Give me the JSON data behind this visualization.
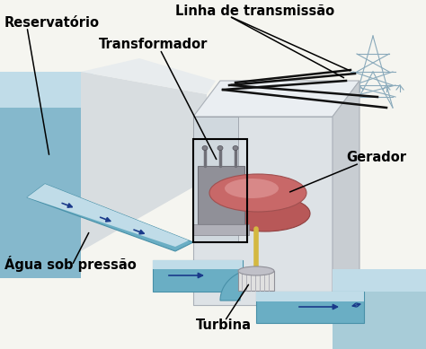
{
  "bg_color": "#f5f5f0",
  "water_blue": "#85b8cc",
  "water_light": "#a8ccd8",
  "water_highlight": "#c0dce8",
  "dam_face": "#d8dde0",
  "dam_top": "#e8ecee",
  "dam_shadow": "#c0c8cc",
  "building_front": "#dde2e6",
  "building_top": "#eaeef2",
  "building_right": "#c8cdd2",
  "building_inner": "#d0d8de",
  "slope_fill": "#d0d5d8",
  "pipe_blue": "#6aaec4",
  "pipe_dark": "#4890a8",
  "generator_red": "#c86868",
  "generator_dark": "#b85858",
  "turbine_white": "#e0e0e0",
  "turbine_gray": "#c0c0c8",
  "shaft_gold": "#d4b840",
  "transformer_gray": "#909098",
  "transformer_dark": "#707078",
  "tower_blue": "#8aaabb",
  "line_black": "#101010",
  "arrow_blue": "#1a3a8a",
  "text_black": "#000000",
  "labels": {
    "reservatorio": "Reservatório",
    "transformador": "Transformador",
    "linha_transmissao": "Linha de transmissão",
    "gerador": "Gerador",
    "agua_pressao": "Água sob pressão",
    "turbina": "Turbina"
  },
  "font_size": 10.5
}
